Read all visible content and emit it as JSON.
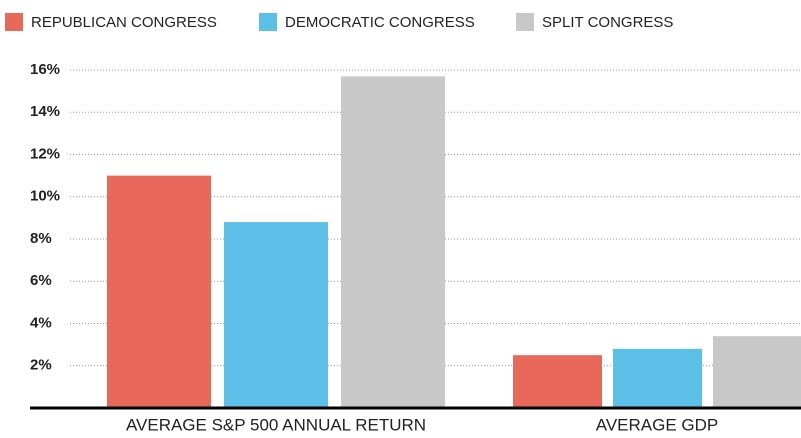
{
  "chart_data": {
    "type": "bar",
    "categories": [
      "AVERAGE S&P 500 ANNUAL RETURN",
      "AVERAGE GDP"
    ],
    "series": [
      {
        "name": "REPUBLICAN CONGRESS",
        "color": "#e8685a",
        "values": [
          11.0,
          2.5
        ]
      },
      {
        "name": "DEMOCRATIC CONGRESS",
        "color": "#5bbfe8",
        "values": [
          8.8,
          2.8
        ]
      },
      {
        "name": "SPLIT CONGRESS",
        "color": "#c8c8c8",
        "values": [
          15.7,
          3.4
        ]
      }
    ],
    "ylim": [
      0,
      16
    ],
    "yticks": [
      {
        "value": 2,
        "label": "2%"
      },
      {
        "value": 4,
        "label": "4%"
      },
      {
        "value": 6,
        "label": "6%"
      },
      {
        "value": 8,
        "label": "8%"
      },
      {
        "value": 10,
        "label": "10%"
      },
      {
        "value": 12,
        "label": "12%"
      },
      {
        "value": 14,
        "label": "14%"
      },
      {
        "value": 16,
        "label": "16%"
      }
    ],
    "grid": true
  }
}
